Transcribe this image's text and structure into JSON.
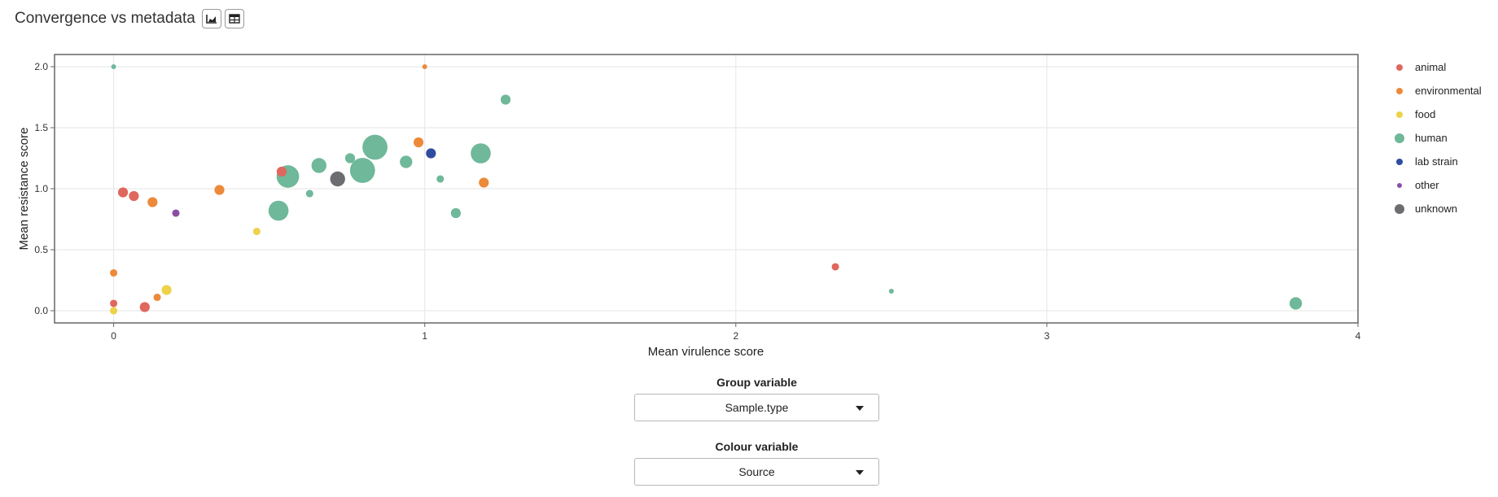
{
  "header": {
    "title": "Convergence vs metadata",
    "chart_icon": "chart-icon",
    "table_icon": "table-icon"
  },
  "controls": {
    "group_label": "Group variable",
    "group_value": "Sample.type",
    "colour_label": "Colour variable",
    "colour_value": "Source"
  },
  "chart_data": {
    "type": "scatter",
    "title": "",
    "xlabel": "Mean virulence score",
    "ylabel": "Mean resistance score",
    "xlim": [
      -0.19,
      4.0
    ],
    "ylim": [
      -0.1,
      2.1
    ],
    "xticks": [
      0,
      1,
      2,
      3,
      4
    ],
    "yticks": [
      0.0,
      0.5,
      1.0,
      1.5,
      2.0
    ],
    "xtick_labels": [
      "0",
      "1",
      "2",
      "3",
      "4"
    ],
    "ytick_labels": [
      "0.0",
      "0.5",
      "1.0",
      "1.5",
      "2.0"
    ],
    "grid": true,
    "legend_position": "right",
    "legend": [
      {
        "name": "animal",
        "color": "#e0675e"
      },
      {
        "name": "environmental",
        "color": "#ec8a3a"
      },
      {
        "name": "food",
        "color": "#eed24a"
      },
      {
        "name": "human",
        "color": "#6fb89a"
      },
      {
        "name": "lab strain",
        "color": "#2e4d9e"
      },
      {
        "name": "other",
        "color": "#8b4fa6"
      },
      {
        "name": "unknown",
        "color": "#6b6d70"
      }
    ],
    "series": [
      {
        "name": "animal",
        "color": "#e0675e",
        "points": [
          {
            "x": 0.03,
            "y": 0.97,
            "size": 2
          },
          {
            "x": 0.065,
            "y": 0.94,
            "size": 2
          },
          {
            "x": 0.0,
            "y": 0.06,
            "size": 1
          },
          {
            "x": 0.1,
            "y": 0.03,
            "size": 2
          },
          {
            "x": 0.54,
            "y": 1.14,
            "size": 2
          },
          {
            "x": 2.32,
            "y": 0.36,
            "size": 1
          }
        ]
      },
      {
        "name": "environmental",
        "color": "#ec8a3a",
        "points": [
          {
            "x": 0.0,
            "y": 0.31,
            "size": 1
          },
          {
            "x": 0.125,
            "y": 0.89,
            "size": 2
          },
          {
            "x": 0.14,
            "y": 0.11,
            "size": 1
          },
          {
            "x": 0.34,
            "y": 0.99,
            "size": 2
          },
          {
            "x": 1.0,
            "y": 2.0,
            "size": 0
          },
          {
            "x": 0.98,
            "y": 1.38,
            "size": 2
          },
          {
            "x": 1.19,
            "y": 1.05,
            "size": 2
          }
        ]
      },
      {
        "name": "food",
        "color": "#eed24a",
        "points": [
          {
            "x": 0.0,
            "y": 0.0,
            "size": 1
          },
          {
            "x": 0.17,
            "y": 0.17,
            "size": 2
          },
          {
            "x": 0.46,
            "y": 0.65,
            "size": 1
          }
        ]
      },
      {
        "name": "human",
        "color": "#6fb89a",
        "points": [
          {
            "x": 0.0,
            "y": 2.0,
            "size": 0
          },
          {
            "x": 0.53,
            "y": 0.82,
            "size": 6
          },
          {
            "x": 0.56,
            "y": 1.1,
            "size": 7
          },
          {
            "x": 0.63,
            "y": 0.96,
            "size": 1
          },
          {
            "x": 0.66,
            "y": 1.19,
            "size": 4
          },
          {
            "x": 0.76,
            "y": 1.25,
            "size": 2
          },
          {
            "x": 0.8,
            "y": 1.15,
            "size": 8
          },
          {
            "x": 0.84,
            "y": 1.34,
            "size": 8
          },
          {
            "x": 0.94,
            "y": 1.22,
            "size": 3
          },
          {
            "x": 1.05,
            "y": 1.08,
            "size": 1
          },
          {
            "x": 1.1,
            "y": 0.8,
            "size": 2
          },
          {
            "x": 1.18,
            "y": 1.29,
            "size": 6
          },
          {
            "x": 1.26,
            "y": 1.73,
            "size": 2
          },
          {
            "x": 2.5,
            "y": 0.16,
            "size": 0
          },
          {
            "x": 3.8,
            "y": 0.06,
            "size": 3
          }
        ]
      },
      {
        "name": "lab strain",
        "color": "#2e4d9e",
        "points": [
          {
            "x": 1.02,
            "y": 1.29,
            "size": 2
          }
        ]
      },
      {
        "name": "other",
        "color": "#8b4fa6",
        "points": [
          {
            "x": 0.2,
            "y": 0.8,
            "size": 1
          }
        ]
      },
      {
        "name": "unknown",
        "color": "#6b6d70",
        "points": [
          {
            "x": 0.72,
            "y": 1.08,
            "size": 4
          }
        ]
      }
    ]
  }
}
